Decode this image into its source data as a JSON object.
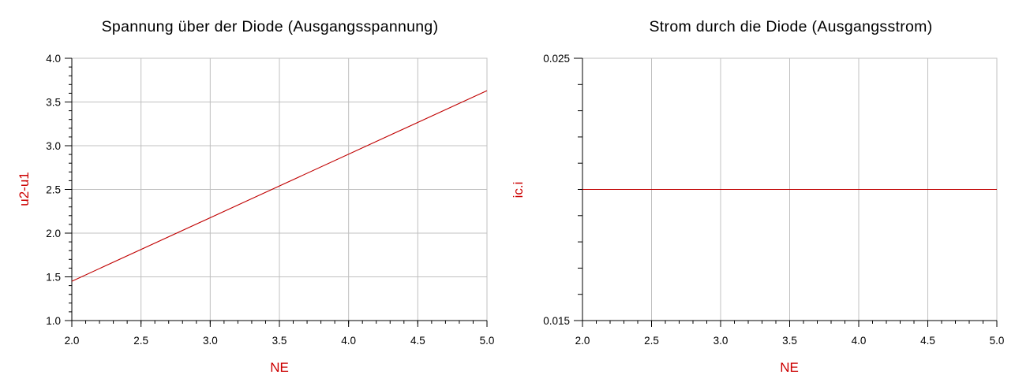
{
  "colors": {
    "series": "#c00000",
    "axis_label": "#cc0000",
    "grid": "#c0c0c0",
    "axis": "#000000"
  },
  "chart_data": [
    {
      "type": "line",
      "title": "Spannung über der Diode (Ausgangsspannung)",
      "xlabel": "NE",
      "ylabel": "u2-u1",
      "xlim": [
        2.0,
        5.0
      ],
      "ylim": [
        1.0,
        4.0
      ],
      "x_ticks": [
        "2.0",
        "2.5",
        "3.0",
        "3.5",
        "4.0",
        "4.5",
        "5.0"
      ],
      "y_ticks": [
        "1.0",
        "1.5",
        "2.0",
        "2.5",
        "3.0",
        "3.5",
        "4.0"
      ],
      "x_minor_step": 0.1,
      "y_minor_step": 0.1,
      "grid": true,
      "series": [
        {
          "x": [
            2.0,
            5.0
          ],
          "y": [
            1.45,
            3.63
          ]
        }
      ]
    },
    {
      "type": "line",
      "title": "Strom durch die Diode (Ausgangsstrom)",
      "xlabel": "NE",
      "ylabel": "ic.i",
      "xlim": [
        2.0,
        5.0
      ],
      "ylim": [
        0.015,
        0.025
      ],
      "x_ticks": [
        "2.0",
        "2.5",
        "3.0",
        "3.5",
        "4.0",
        "4.5",
        "5.0"
      ],
      "y_ticks": [
        "0.015",
        "0.025"
      ],
      "y_ticks_unlabeled_step": 0.001,
      "x_minor_step": 0.1,
      "grid": true,
      "series": [
        {
          "x": [
            2.0,
            5.0
          ],
          "y": [
            0.02,
            0.02
          ]
        }
      ]
    }
  ]
}
